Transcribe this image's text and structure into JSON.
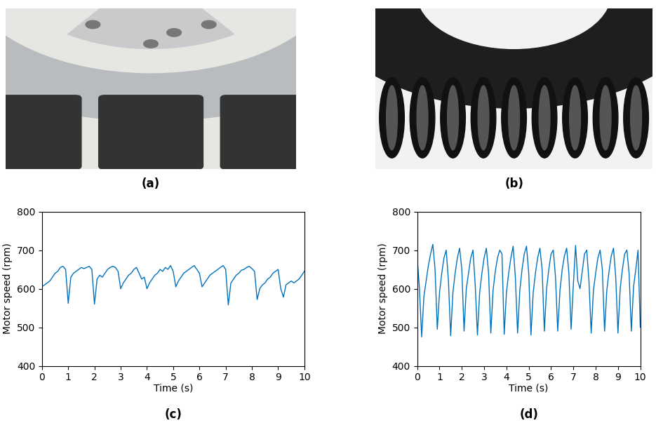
{
  "photos": [
    {
      "caption": "(a)"
    },
    {
      "caption": "(b)"
    }
  ],
  "chart_data": [
    {
      "type": "line",
      "caption": "(c)",
      "xlabel": "Time (s)",
      "ylabel": "Motor speed (rpm)",
      "xlim": [
        0,
        10
      ],
      "xticks": [
        0,
        1,
        2,
        3,
        4,
        5,
        6,
        7,
        8,
        9,
        10
      ],
      "ylim": [
        400,
        800
      ],
      "yticks": [
        400,
        500,
        600,
        700,
        800
      ],
      "grid": false,
      "series": [
        {
          "color": "#0072bd",
          "x": [
            0.0,
            0.1,
            0.2,
            0.3,
            0.4,
            0.5,
            0.6,
            0.7,
            0.8,
            0.9,
            1.0,
            1.1,
            1.2,
            1.3,
            1.4,
            1.5,
            1.6,
            1.7,
            1.8,
            1.9,
            2.0,
            2.1,
            2.2,
            2.3,
            2.4,
            2.5,
            2.6,
            2.7,
            2.8,
            2.9,
            3.0,
            3.1,
            3.2,
            3.3,
            3.4,
            3.5,
            3.6,
            3.7,
            3.8,
            3.9,
            4.0,
            4.1,
            4.2,
            4.3,
            4.4,
            4.5,
            4.6,
            4.7,
            4.8,
            4.9,
            5.0,
            5.1,
            5.2,
            5.3,
            5.4,
            5.5,
            5.6,
            5.7,
            5.8,
            5.9,
            6.0,
            6.1,
            6.2,
            6.3,
            6.4,
            6.5,
            6.6,
            6.7,
            6.8,
            6.9,
            7.0,
            7.1,
            7.2,
            7.3,
            7.4,
            7.5,
            7.6,
            7.7,
            7.8,
            7.9,
            8.0,
            8.1,
            8.2,
            8.3,
            8.4,
            8.5,
            8.6,
            8.7,
            8.8,
            8.9,
            9.0,
            9.1,
            9.2,
            9.3,
            9.4,
            9.5,
            9.6,
            9.7,
            9.8,
            9.9,
            10.0
          ],
          "values": [
            605,
            610,
            615,
            620,
            630,
            640,
            645,
            655,
            658,
            650,
            562,
            630,
            640,
            645,
            650,
            655,
            652,
            655,
            658,
            650,
            560,
            625,
            635,
            630,
            640,
            650,
            655,
            658,
            655,
            645,
            600,
            615,
            625,
            635,
            640,
            650,
            655,
            640,
            625,
            630,
            600,
            615,
            625,
            635,
            640,
            650,
            645,
            655,
            650,
            660,
            645,
            605,
            620,
            630,
            640,
            645,
            650,
            655,
            660,
            650,
            640,
            605,
            615,
            625,
            635,
            640,
            645,
            650,
            655,
            660,
            650,
            558,
            615,
            625,
            635,
            640,
            648,
            650,
            655,
            658,
            652,
            645,
            572,
            600,
            610,
            615,
            625,
            630,
            640,
            645,
            650,
            600,
            578,
            610,
            615,
            620,
            615,
            620,
            625,
            635,
            645
          ]
        }
      ]
    },
    {
      "type": "line",
      "caption": "(d)",
      "xlabel": "Time (s)",
      "ylabel": "Motor speed (rpm)",
      "xlim": [
        0,
        10
      ],
      "xticks": [
        0,
        1,
        2,
        3,
        4,
        5,
        6,
        7,
        8,
        9,
        10
      ],
      "ylim": [
        400,
        800
      ],
      "yticks": [
        400,
        500,
        600,
        700,
        800
      ],
      "grid": false,
      "series": [
        {
          "color": "#0072bd",
          "x": [
            0.0,
            0.1,
            0.2,
            0.3,
            0.4,
            0.5,
            0.6,
            0.7,
            0.8,
            0.9,
            1.0,
            1.1,
            1.2,
            1.3,
            1.4,
            1.5,
            1.6,
            1.7,
            1.8,
            1.9,
            2.0,
            2.1,
            2.2,
            2.3,
            2.4,
            2.5,
            2.6,
            2.7,
            2.8,
            2.9,
            3.0,
            3.1,
            3.2,
            3.3,
            3.4,
            3.5,
            3.6,
            3.7,
            3.8,
            3.9,
            4.0,
            4.1,
            4.2,
            4.3,
            4.4,
            4.5,
            4.6,
            4.7,
            4.8,
            4.9,
            5.0,
            5.1,
            5.2,
            5.3,
            5.4,
            5.5,
            5.6,
            5.7,
            5.8,
            5.9,
            6.0,
            6.1,
            6.2,
            6.3,
            6.4,
            6.5,
            6.6,
            6.7,
            6.8,
            6.9,
            7.0,
            7.1,
            7.2,
            7.3,
            7.4,
            7.5,
            7.6,
            7.7,
            7.8,
            7.9,
            8.0,
            8.1,
            8.2,
            8.3,
            8.4,
            8.5,
            8.6,
            8.7,
            8.8,
            8.9,
            9.0,
            9.1,
            9.2,
            9.3,
            9.4,
            9.5,
            9.6,
            9.7,
            9.8,
            9.9,
            10.0
          ],
          "values": [
            680,
            600,
            475,
            580,
            620,
            660,
            690,
            715,
            650,
            495,
            590,
            640,
            680,
            700,
            620,
            478,
            590,
            640,
            680,
            705,
            650,
            490,
            600,
            640,
            680,
            700,
            610,
            480,
            590,
            640,
            680,
            705,
            640,
            485,
            595,
            645,
            680,
            700,
            690,
            482,
            590,
            640,
            680,
            710,
            630,
            485,
            595,
            650,
            690,
            710,
            640,
            480,
            590,
            640,
            680,
            705,
            650,
            490,
            600,
            650,
            690,
            700,
            630,
            490,
            595,
            650,
            685,
            705,
            640,
            495,
            610,
            712,
            620,
            600,
            645,
            690,
            700,
            620,
            485,
            595,
            640,
            680,
            700,
            650,
            490,
            595,
            645,
            685,
            705,
            630,
            485,
            600,
            650,
            690,
            700,
            640,
            490,
            605,
            650,
            700,
            500
          ]
        }
      ]
    }
  ]
}
